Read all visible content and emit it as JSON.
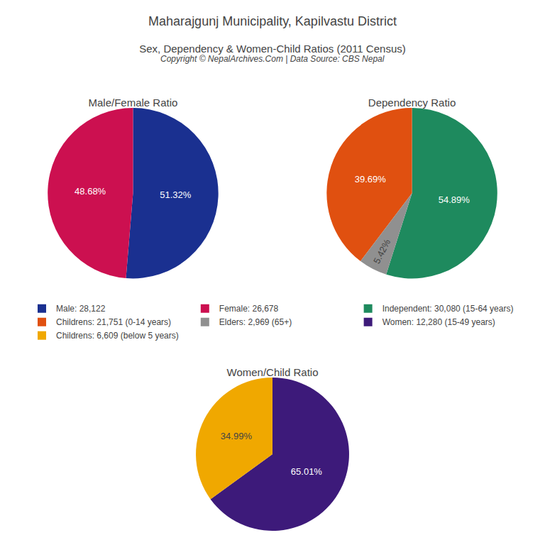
{
  "title": "Maharajgunj Municipality, Kapilvastu District",
  "subtitle": "Sex, Dependency & Women-Child Ratios (2011 Census)",
  "annotations": [
    "Copyright © NepalArchives.Com | Data Source: CBS Nepal"
  ],
  "legend": "center",
  "chart_data": [
    {
      "type": "pie",
      "title": "Male/Female Ratio",
      "categories": [
        "Male: 28,122",
        "Female: 26,678"
      ],
      "values": [
        51.32,
        48.68
      ],
      "value_labels": [
        "51.32%",
        "48.68%"
      ],
      "colors": [
        "#1A3090",
        "#CC1050"
      ],
      "data_labels": true
    },
    {
      "type": "pie",
      "title": "Dependency Ratio",
      "categories": [
        "Independent: 30,080 (15-64 years)",
        "Childrens: 21,751 (0-14 years)",
        "Elders: 2,969 (65+)"
      ],
      "values": [
        54.89,
        39.69,
        5.42
      ],
      "value_labels": [
        "54.89%",
        "39.69%",
        "5.42%"
      ],
      "colors": [
        "#1E8A5E",
        "#E05010",
        "#909090"
      ],
      "data_labels": true
    },
    {
      "type": "pie",
      "title": "Women/Child Ratio",
      "categories": [
        "Women: 12,280 (15-49 years)",
        "Childrens: 6,609 (below 5 years)"
      ],
      "values": [
        65.01,
        34.99
      ],
      "value_labels": [
        "65.01%",
        "34.99%"
      ],
      "colors": [
        "#3D1A7A",
        "#F0A800"
      ],
      "data_labels": true
    }
  ]
}
